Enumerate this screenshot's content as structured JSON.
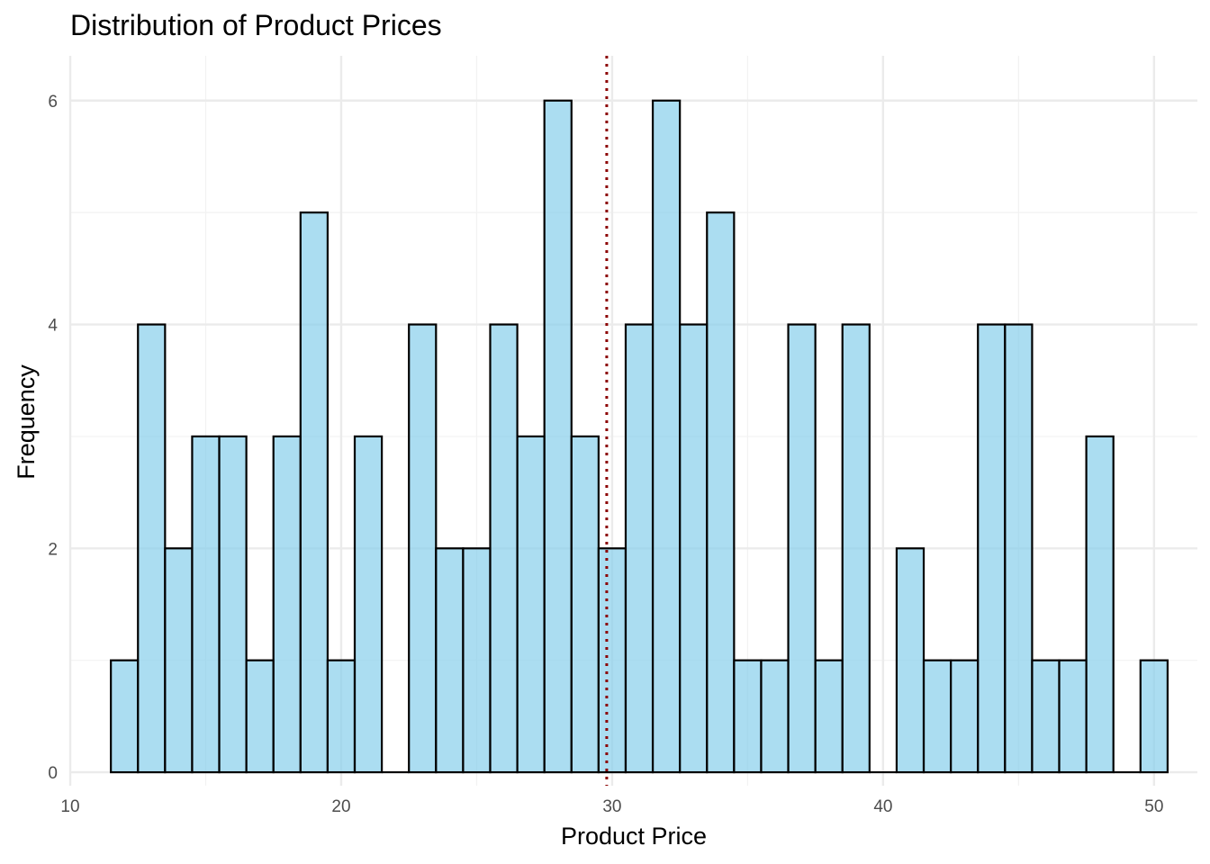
{
  "chart_data": {
    "type": "histogram",
    "title": "Distribution of Product Prices",
    "xlabel": "Product Price",
    "ylabel": "Frequency",
    "xlim": [
      10,
      51.6
    ],
    "ylim": [
      -0.12,
      6.4
    ],
    "x_ticks": [
      10,
      20,
      30,
      40,
      50
    ],
    "y_ticks": [
      0,
      2,
      4,
      6
    ],
    "bin_width": 1,
    "bin_starts": [
      11.5,
      12.5,
      13.5,
      14.5,
      15.5,
      16.5,
      17.5,
      18.5,
      19.5,
      20.5,
      21.5,
      22.5,
      23.5,
      24.5,
      25.5,
      26.5,
      27.5,
      28.5,
      29.5,
      30.5,
      31.5,
      32.5,
      33.5,
      34.5,
      35.5,
      36.5,
      37.5,
      38.5,
      39.5,
      40.5,
      41.5,
      42.5,
      43.5,
      44.5,
      45.5,
      46.5,
      47.5,
      48.5,
      49.5
    ],
    "counts": [
      1,
      4,
      2,
      3,
      3,
      1,
      3,
      5,
      1,
      3,
      0,
      4,
      2,
      2,
      4,
      3,
      6,
      3,
      2,
      4,
      6,
      4,
      5,
      1,
      1,
      4,
      1,
      4,
      0,
      2,
      1,
      1,
      4,
      4,
      1,
      1,
      3,
      0,
      1
    ],
    "mean_line": {
      "x": 29.8,
      "style": "dotted",
      "color": "#8b0000"
    },
    "bar_fill": "#87ceeb",
    "bar_stroke": "#000000",
    "grid": true,
    "legend": "none"
  }
}
